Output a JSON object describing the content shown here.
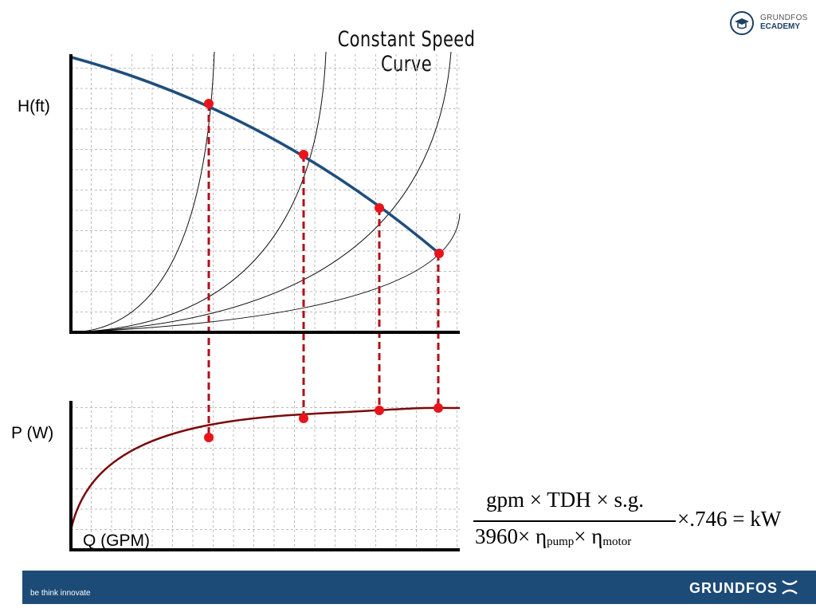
{
  "title": "Constant Speed Curve",
  "axes": {
    "head_label": "H(ft)",
    "power_label": "P (W)",
    "flow_label": "Q (GPM)"
  },
  "diagram": {
    "pump_curve": "constant speed pump curve (head vs flow)",
    "power_curve": "power consumption curve",
    "system_curves_count": 4,
    "operating_points_count": 4
  },
  "formula": {
    "numerator": "gpm × TDH × s.g.",
    "denominator_lead": "3960× η",
    "sub_pump": "pump",
    "denominator_mid": "× η",
    "sub_motor": "motor",
    "rhs": "×.746 = kW"
  },
  "logo": {
    "line1": "GRUNDFOS",
    "line2": "ECADEMY"
  },
  "footer": {
    "tagline": "be think innovate",
    "brand": "GRUNDFOS"
  },
  "colors": {
    "pump_curve": "#1f4e7d",
    "power_curve": "#7a0a0a",
    "operating_point": "#e8141c",
    "dashed_drop": "#b01018",
    "footer_bg": "#1d4b77"
  }
}
